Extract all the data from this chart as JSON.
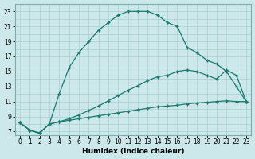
{
  "xlabel": "Humidex (Indice chaleur)",
  "bg_color": "#cce8ea",
  "line_color": "#1a7a6e",
  "xlim": [
    -0.5,
    23.5
  ],
  "ylim": [
    6.5,
    24.0
  ],
  "xticks": [
    0,
    1,
    2,
    3,
    4,
    5,
    6,
    7,
    8,
    9,
    10,
    11,
    12,
    13,
    14,
    15,
    16,
    17,
    18,
    19,
    20,
    21,
    22,
    23
  ],
  "yticks": [
    7,
    9,
    11,
    13,
    15,
    17,
    19,
    21,
    23
  ],
  "line_top_x": [
    0,
    1,
    2,
    3,
    4,
    5,
    6,
    7,
    8,
    9,
    10,
    11,
    12,
    13,
    14,
    15,
    16,
    17,
    18,
    19,
    20,
    21,
    22,
    23
  ],
  "line_top_y": [
    8.2,
    7.2,
    6.8,
    8.0,
    12.0,
    15.5,
    17.5,
    19.0,
    20.5,
    21.5,
    22.5,
    23.0,
    23.0,
    23.0,
    22.5,
    21.5,
    21.0,
    18.2,
    17.5,
    16.5,
    16.0,
    15.0,
    13.0,
    11.0
  ],
  "line_mid_x": [
    0,
    1,
    2,
    3,
    4,
    5,
    6,
    7,
    8,
    9,
    10,
    11,
    12,
    13,
    14,
    15,
    16,
    17,
    18,
    19,
    20,
    21,
    22,
    23
  ],
  "line_mid_y": [
    8.2,
    7.2,
    6.8,
    8.0,
    8.3,
    8.7,
    9.2,
    9.8,
    10.4,
    11.1,
    11.8,
    12.5,
    13.1,
    13.8,
    14.3,
    14.5,
    15.0,
    15.2,
    15.0,
    14.5,
    14.0,
    15.2,
    14.5,
    11.0
  ],
  "line_bot_x": [
    0,
    1,
    2,
    3,
    4,
    5,
    6,
    7,
    8,
    9,
    10,
    11,
    12,
    13,
    14,
    15,
    16,
    17,
    18,
    19,
    20,
    21,
    22,
    23
  ],
  "line_bot_y": [
    8.2,
    7.2,
    6.8,
    8.0,
    8.3,
    8.5,
    8.7,
    8.9,
    9.1,
    9.3,
    9.5,
    9.7,
    9.9,
    10.1,
    10.3,
    10.4,
    10.5,
    10.7,
    10.8,
    10.9,
    11.0,
    11.1,
    11.0,
    11.0
  ],
  "grid_color": "#a8cfd4",
  "marker": "+"
}
